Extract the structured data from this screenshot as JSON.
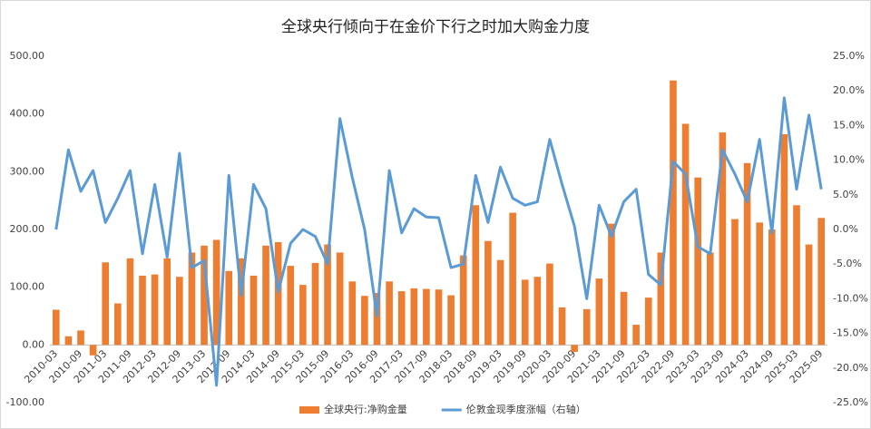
{
  "chart_data": {
    "type": "bar_line",
    "title": "全球央行倾向于在金价下行之时加大购金力度",
    "categories": [
      "2010-03",
      null,
      "2010-09",
      null,
      "2011-03",
      null,
      "2011-09",
      null,
      "2012-03",
      null,
      "2012-09",
      null,
      "2013-03",
      null,
      "2013-09",
      null,
      "2014-03",
      null,
      "2014-09",
      null,
      "2015-03",
      null,
      "2015-09",
      null,
      "2016-03",
      null,
      "2016-09",
      null,
      "2017-03",
      null,
      "2017-09",
      null,
      "2018-03",
      null,
      "2018-09",
      null,
      "2019-03",
      null,
      "2019-09",
      null,
      "2020-03",
      null,
      "2020-09",
      null,
      "2021-03",
      null,
      "2021-09",
      null,
      "2022-03",
      null,
      "2022-09",
      null,
      "2023-03",
      null,
      "2023-09",
      null,
      "2024-03",
      null,
      "2024-09",
      null,
      "2025-03",
      null,
      "2025-09"
    ],
    "series": [
      {
        "name": "全球央行:净购金量",
        "color": "#ED7D31",
        "kind": "bar",
        "values": [
          61,
          15,
          25,
          -18,
          143,
          72,
          150,
          120,
          122,
          150,
          118,
          160,
          172,
          182,
          128,
          150,
          120,
          172,
          178,
          137,
          104,
          142,
          174,
          160,
          110,
          85,
          90,
          110,
          93,
          98,
          97,
          96,
          86,
          155,
          242,
          180,
          147,
          229,
          113,
          118,
          141,
          65,
          -12,
          62,
          115,
          210,
          92,
          35,
          82,
          160,
          458,
          383,
          290,
          160,
          368,
          218,
          315,
          212,
          200,
          365,
          242,
          174,
          220
        ]
      },
      {
        "name": "伦敦金现季度涨幅（右轴）",
        "color": "#5B9BD5",
        "kind": "line",
        "axis": "y2",
        "values": [
          0,
          11.5,
          5.5,
          8.5,
          1,
          4.5,
          8.5,
          -3.5,
          6.5,
          -4,
          11,
          -5.5,
          -4.5,
          -22.5,
          7.8,
          -9.5,
          6.5,
          3,
          -9,
          -2,
          0,
          -1,
          -5,
          16,
          7.5,
          0,
          -12.5,
          8.5,
          -0.5,
          3,
          1.8,
          1.7,
          -5.5,
          -5,
          7.8,
          1,
          9,
          4.5,
          3.5,
          4,
          13,
          6.5,
          0.5,
          -10,
          3.5,
          -1,
          4,
          5.8,
          -6.5,
          -8,
          9.8,
          8,
          -2.5,
          -3.5,
          11.5,
          8,
          4,
          13,
          -0.5,
          19,
          5.8,
          16.5,
          5.8
        ]
      }
    ],
    "ylim": [
      -100,
      500
    ],
    "yticks": [
      {
        "value": -100,
        "label": "-100.00"
      },
      {
        "value": 0,
        "label": "0.00"
      },
      {
        "value": 100,
        "label": "100.00"
      },
      {
        "value": 200,
        "label": "200.00"
      },
      {
        "value": 300,
        "label": "300.00"
      },
      {
        "value": 400,
        "label": "400.00"
      },
      {
        "value": 500,
        "label": "500.00"
      }
    ],
    "y2lim": [
      -25,
      25
    ],
    "y2ticks": [
      {
        "value": -25,
        "label": "-25.0%"
      },
      {
        "value": -20,
        "label": "-20.0%"
      },
      {
        "value": -15,
        "label": "-15.0%"
      },
      {
        "value": -10,
        "label": "-10.0%"
      },
      {
        "value": -5,
        "label": "-5.0%"
      },
      {
        "value": 0,
        "label": "0.0%"
      },
      {
        "value": 5,
        "label": "5.0%"
      },
      {
        "value": 10,
        "label": "10.0%"
      },
      {
        "value": 15,
        "label": "15.0%"
      },
      {
        "value": 20,
        "label": "20.0%"
      },
      {
        "value": 25,
        "label": "25.0%"
      }
    ],
    "grid": false,
    "legend": "bottom"
  }
}
